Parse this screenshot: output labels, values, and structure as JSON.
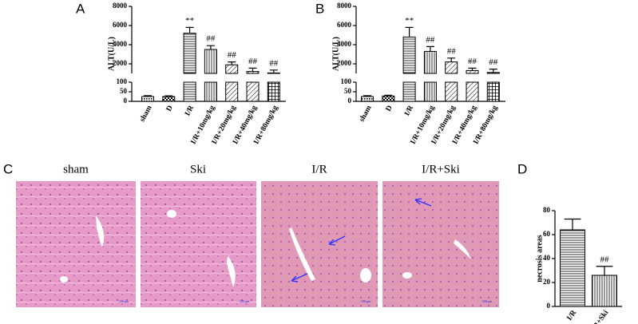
{
  "chart_data": [
    {
      "type": "bar",
      "panel_label": "A",
      "ylabel": "ALT(U/L)",
      "color": "#000000",
      "categories": [
        "sham",
        "D",
        "I/R",
        "I/R+10mg/kg",
        "I/R+20mg/kg",
        "I/R+40mg/kg",
        "I/R+80mg/kg"
      ],
      "values": [
        25,
        25,
        5200,
        3500,
        1900,
        1200,
        1050
      ],
      "errors": [
        5,
        4,
        600,
        400,
        300,
        350,
        300
      ],
      "annotations": [
        null,
        null,
        "**",
        "##",
        "##",
        "##",
        "##"
      ],
      "patterns": [
        "dots",
        "checker",
        "hlines",
        "vlines",
        "diag",
        "diag",
        "grid"
      ],
      "segments": [
        {
          "ylim": [
            0,
            100
          ],
          "yticks": [
            0,
            50,
            100
          ]
        },
        {
          "ylim": [
            1000,
            8000
          ],
          "yticks": [
            2000,
            4000,
            6000,
            8000
          ]
        }
      ]
    },
    {
      "type": "bar",
      "panel_label": "B",
      "ylabel": "ALT(U/L)",
      "color": "#000000",
      "categories": [
        "sham",
        "D",
        "I/R",
        "I/R+10mg/kg",
        "I/R+20mg/kg",
        "I/R+40mg/kg",
        "I/R+80mg/kg"
      ],
      "values": [
        25,
        28,
        4800,
        3300,
        2200,
        1300,
        1100
      ],
      "errors": [
        5,
        4,
        1000,
        500,
        400,
        250,
        350
      ],
      "annotations": [
        null,
        null,
        "**",
        "##",
        "##",
        "##",
        "##"
      ],
      "patterns": [
        "dots",
        "checker",
        "hlines",
        "vlines",
        "diag",
        "diag",
        "grid"
      ],
      "segments": [
        {
          "ylim": [
            0,
            100
          ],
          "yticks": [
            0,
            50,
            100
          ]
        },
        {
          "ylim": [
            1000,
            8000
          ],
          "yticks": [
            2000,
            4000,
            6000,
            8000
          ]
        }
      ]
    },
    {
      "type": "bar",
      "panel_label": "D",
      "ylabel": "necrosis areas",
      "color": "#000000",
      "categories": [
        "I/R",
        "I/R+Ski"
      ],
      "values": [
        64,
        26
      ],
      "errors": [
        9,
        7.5
      ],
      "annotations": [
        null,
        "##"
      ],
      "patterns": [
        "hlines",
        "vlines"
      ],
      "ylim": [
        0,
        80
      ],
      "yticks": [
        0,
        20,
        40,
        60,
        80
      ]
    }
  ],
  "histology": {
    "label": "C",
    "scale_bar": "100 μm",
    "images": [
      {
        "title": "sham"
      },
      {
        "title": "Ski"
      },
      {
        "title": "I/R"
      },
      {
        "title": "I/R+Ski"
      }
    ]
  }
}
